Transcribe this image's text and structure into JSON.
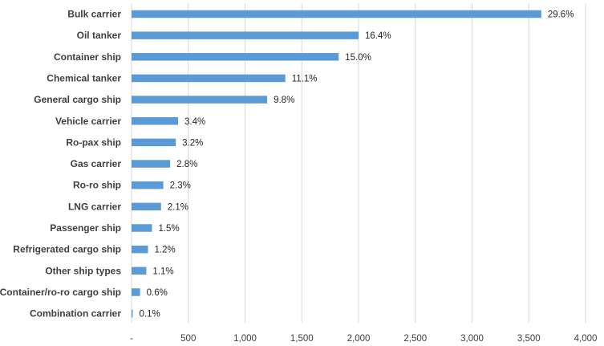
{
  "chart_data": {
    "type": "bar",
    "orientation": "horizontal",
    "title": "",
    "xlabel": "",
    "ylabel": "",
    "categories": [
      "Bulk carrier",
      "Oil tanker",
      "Container ship",
      "Chemical tanker",
      "General cargo ship",
      "Vehicle carrier",
      "Ro-pax ship",
      "Gas carrier",
      "Ro-ro ship",
      "LNG carrier",
      "Passenger ship",
      "Refrigerated cargo ship",
      "Other ship types",
      "Container/ro-ro cargo ship",
      "Combination carrier"
    ],
    "values": [
      3610,
      2000,
      1825,
      1355,
      1195,
      410,
      390,
      340,
      280,
      260,
      180,
      145,
      130,
      75,
      10
    ],
    "data_labels": [
      "29.6%",
      "16.4%",
      "15.0%",
      "11.1%",
      "9.8%",
      "3.4%",
      "3.2%",
      "2.8%",
      "2.3%",
      "2.1%",
      "1.5%",
      "1.2%",
      "1.1%",
      "0.6%",
      "0.1%"
    ],
    "xlim": [
      0,
      4000
    ],
    "x_ticks": [
      0,
      500,
      1000,
      1500,
      2000,
      2500,
      3000,
      3500,
      4000
    ],
    "x_tick_labels": [
      "-",
      "500",
      "1,000",
      "1,500",
      "2,000",
      "2,500",
      "3,000",
      "3,500",
      "4,000"
    ],
    "grid": "vertical",
    "legend": "none",
    "colors": {
      "bar": "#5b9bd5",
      "grid": "#d9d9d9",
      "text": "#404040"
    }
  }
}
